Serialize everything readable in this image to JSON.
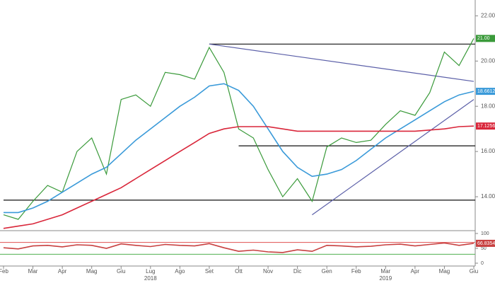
{
  "chart_data": [
    {
      "type": "line",
      "categories": [
        "Feb",
        null,
        "Mar",
        null,
        "Apr",
        null,
        "Mag",
        null,
        "Giu",
        null,
        "Lug",
        null,
        "Ago",
        null,
        "Set",
        null,
        "Ott",
        null,
        "Nov",
        null,
        "Dic",
        null,
        "Gen",
        null,
        "Feb",
        null,
        "Mar",
        null,
        "Apr",
        null,
        "Mag",
        null,
        "Giu"
      ],
      "years": [
        "2018",
        "2019"
      ],
      "series": [
        {
          "color": "#3a9a3a",
          "values": [
            13.2,
            13.0,
            13.8,
            14.5,
            14.2,
            16.0,
            16.6,
            15.0,
            18.3,
            18.5,
            18.0,
            19.5,
            19.4,
            19.2,
            20.6,
            19.5,
            17.0,
            16.6,
            15.2,
            14.0,
            14.8,
            13.8,
            16.2,
            16.6,
            16.4,
            16.5,
            17.2,
            17.8,
            17.6,
            18.6,
            20.4,
            19.8,
            21.0
          ],
          "value_labels": [
            null,
            null,
            null,
            null,
            null,
            null,
            null,
            null,
            null,
            null,
            null,
            null,
            null,
            null,
            null,
            null,
            null,
            null,
            null,
            null,
            null,
            null,
            null,
            null,
            null,
            null,
            null,
            null,
            null,
            null,
            null,
            null,
            "21.00"
          ]
        },
        {
          "color": "#3a9ad9",
          "values": [
            13.3,
            13.3,
            13.5,
            13.8,
            14.2,
            14.6,
            15.0,
            15.3,
            15.9,
            16.5,
            17.0,
            17.5,
            18.0,
            18.4,
            18.9,
            19.0,
            18.7,
            18.0,
            17.0,
            16.0,
            15.3,
            14.9,
            15.0,
            15.2,
            15.6,
            16.1,
            16.6,
            17.0,
            17.4,
            17.8,
            18.2,
            18.5,
            18.6612
          ],
          "value_labels": [
            null,
            null,
            null,
            null,
            null,
            null,
            null,
            null,
            null,
            null,
            null,
            null,
            null,
            null,
            null,
            null,
            null,
            null,
            null,
            null,
            null,
            null,
            null,
            null,
            null,
            null,
            null,
            null,
            null,
            null,
            null,
            null,
            "18.6612"
          ]
        },
        {
          "color": "#d9263a",
          "values": [
            12.6,
            12.7,
            12.8,
            13.0,
            13.2,
            13.5,
            13.8,
            14.1,
            14.4,
            14.8,
            15.2,
            15.6,
            16.0,
            16.4,
            16.8,
            17.0,
            17.1,
            17.1,
            17.1,
            17.0,
            16.9,
            16.9,
            16.9,
            16.9,
            16.9,
            16.9,
            16.9,
            16.9,
            16.9,
            16.95,
            17.0,
            17.1,
            17.1256
          ],
          "value_labels": [
            null,
            null,
            null,
            null,
            null,
            null,
            null,
            null,
            null,
            null,
            null,
            null,
            null,
            null,
            null,
            null,
            null,
            null,
            null,
            null,
            null,
            null,
            null,
            null,
            null,
            null,
            null,
            null,
            null,
            null,
            null,
            null,
            "17.1256"
          ]
        }
      ],
      "levels": [
        20.75,
        16.25,
        13.85
      ],
      "trendlines": [
        [
          20.75,
          19.1
        ],
        [
          13.2,
          18.3
        ]
      ],
      "ylim": [
        12.5,
        22.7
      ],
      "yticks": [
        {
          "value": 14,
          "label": "14.00"
        },
        {
          "value": 16,
          "label": "16.00"
        },
        {
          "value": 18,
          "label": "18.00"
        },
        {
          "value": 20,
          "label": "20.00"
        },
        {
          "value": 22,
          "label": "22.00"
        }
      ]
    },
    {
      "type": "line",
      "series": [
        {
          "color": "#c84040",
          "values": [
            52,
            48,
            58,
            60,
            55,
            62,
            60,
            50,
            65,
            60,
            56,
            63,
            60,
            58,
            66,
            52,
            40,
            44,
            38,
            36,
            45,
            40,
            60,
            58,
            55,
            57,
            62,
            64,
            58,
            63,
            68,
            60,
            66.8354
          ],
          "value_labels": [
            null,
            null,
            null,
            null,
            null,
            null,
            null,
            null,
            null,
            null,
            null,
            null,
            null,
            null,
            null,
            null,
            null,
            null,
            null,
            null,
            null,
            null,
            null,
            null,
            null,
            null,
            null,
            null,
            null,
            null,
            null,
            null,
            "66.8354"
          ]
        }
      ],
      "levels": [
        {
          "value": 70,
          "color": "#e05050"
        },
        {
          "value": 30,
          "color": "#50b050"
        }
      ],
      "ylim": [
        0,
        100
      ],
      "yticks": [
        0,
        50,
        100
      ]
    }
  ]
}
